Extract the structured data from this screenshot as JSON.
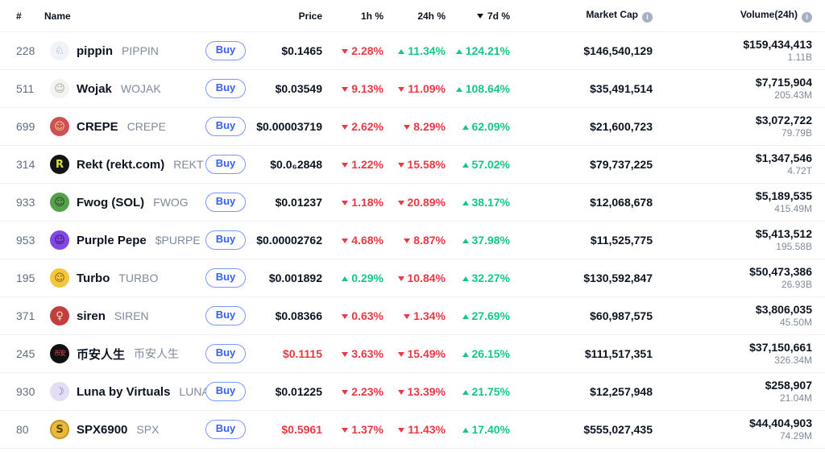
{
  "columns": {
    "rank": "#",
    "name": "Name",
    "price": "Price",
    "h1": "1h %",
    "h24": "24h %",
    "d7": "7d %",
    "market_cap": "Market Cap",
    "volume": "Volume(24h)"
  },
  "labels": {
    "buy": "Buy"
  },
  "sort": {
    "column": "7d %",
    "direction": "desc"
  },
  "colors": {
    "up": "#16c784",
    "down": "#ea3943",
    "buy_blue": "#3861fb",
    "text": "#0d1421",
    "secondary": "#808a9d"
  },
  "icons": {
    "market_cap_info": "info-icon",
    "volume_info": "info-icon",
    "sort_desc": "caret-down"
  },
  "rows": [
    {
      "rank": "228",
      "icon": {
        "glyph": "♘",
        "style": "background:#f0f4fa;color:#8d99ab"
      },
      "name": "pippin",
      "symbol": "PIPPIN",
      "price": {
        "value": "$0.1465",
        "cls": ""
      },
      "h1": {
        "value": "2.28%",
        "dir": "down"
      },
      "h24": {
        "value": "11.34%",
        "dir": "up"
      },
      "d7": {
        "value": "124.21%",
        "dir": "up"
      },
      "market_cap": "$146,540,129",
      "volume": "$159,434,413",
      "volume_sub": "1.11B"
    },
    {
      "rank": "511",
      "icon": {
        "glyph": "☺",
        "style": "background:#f3f3f1;color:#a8a89e"
      },
      "name": "Wojak",
      "symbol": "WOJAK",
      "price": {
        "value": "$0.03549",
        "cls": ""
      },
      "h1": {
        "value": "9.13%",
        "dir": "down"
      },
      "h24": {
        "value": "11.09%",
        "dir": "down"
      },
      "d7": {
        "value": "108.64%",
        "dir": "up"
      },
      "market_cap": "$35,491,514",
      "volume": "$7,715,904",
      "volume_sub": "205.43M"
    },
    {
      "rank": "699",
      "icon": {
        "glyph": "☺",
        "style": "background:#cf5058;color:#f6d77d"
      },
      "name": "CREPE",
      "symbol": "CREPE",
      "price": {
        "value": "$0.00003719",
        "cls": ""
      },
      "h1": {
        "value": "2.62%",
        "dir": "down"
      },
      "h24": {
        "value": "8.29%",
        "dir": "down"
      },
      "d7": {
        "value": "62.09%",
        "dir": "up"
      },
      "market_cap": "$21,600,723",
      "volume": "$3,072,722",
      "volume_sub": "79.79B"
    },
    {
      "rank": "314",
      "icon": {
        "glyph": "R",
        "style": "background:#141414;color:#d6e33e;font-weight:bold"
      },
      "name": "Rekt (rekt.com)",
      "symbol": "REKT",
      "price": {
        "value": "$0.0₆2848",
        "cls": ""
      },
      "h1": {
        "value": "1.22%",
        "dir": "down"
      },
      "h24": {
        "value": "15.58%",
        "dir": "down"
      },
      "d7": {
        "value": "57.02%",
        "dir": "up"
      },
      "market_cap": "$79,737,225",
      "volume": "$1,347,546",
      "volume_sub": "4.72T"
    },
    {
      "rank": "933",
      "icon": {
        "glyph": "☺",
        "style": "background:#56a04c;color:#1d3f1a"
      },
      "name": "Fwog (SOL)",
      "symbol": "FWOG",
      "price": {
        "value": "$0.01237",
        "cls": ""
      },
      "h1": {
        "value": "1.18%",
        "dir": "down"
      },
      "h24": {
        "value": "20.89%",
        "dir": "down"
      },
      "d7": {
        "value": "38.17%",
        "dir": "up"
      },
      "market_cap": "$12,068,678",
      "volume": "$5,189,535",
      "volume_sub": "415.49M"
    },
    {
      "rank": "953",
      "icon": {
        "glyph": "☺",
        "style": "background:#8247e5;color:#2a1457"
      },
      "name": "Purple Pepe",
      "symbol": "$PURPE",
      "price": {
        "value": "$0.00002762",
        "cls": ""
      },
      "h1": {
        "value": "4.68%",
        "dir": "down"
      },
      "h24": {
        "value": "8.87%",
        "dir": "down"
      },
      "d7": {
        "value": "37.98%",
        "dir": "up"
      },
      "market_cap": "$11,525,775",
      "volume": "$5,413,512",
      "volume_sub": "195.58B"
    },
    {
      "rank": "195",
      "icon": {
        "glyph": "☺",
        "style": "background:#f2c73d;color:#8a5a00"
      },
      "name": "Turbo",
      "symbol": "TURBO",
      "price": {
        "value": "$0.001892",
        "cls": ""
      },
      "h1": {
        "value": "0.29%",
        "dir": "up"
      },
      "h24": {
        "value": "10.84%",
        "dir": "down"
      },
      "d7": {
        "value": "32.27%",
        "dir": "up"
      },
      "market_cap": "$130,592,847",
      "volume": "$50,473,386",
      "volume_sub": "26.93B"
    },
    {
      "rank": "371",
      "icon": {
        "glyph": "♀",
        "style": "background:#c23f3f;color:#ffd9c9"
      },
      "name": "siren",
      "symbol": "SIREN",
      "price": {
        "value": "$0.08366",
        "cls": ""
      },
      "h1": {
        "value": "0.63%",
        "dir": "down"
      },
      "h24": {
        "value": "1.34%",
        "dir": "down"
      },
      "d7": {
        "value": "27.69%",
        "dir": "up"
      },
      "market_cap": "$60,987,575",
      "volume": "$3,806,035",
      "volume_sub": "45.50M"
    },
    {
      "rank": "245",
      "icon": {
        "glyph": "币安",
        "style": "background:#101010;color:#e5484d;font-size:8px;letter-spacing:-1px"
      },
      "name": "币安人生",
      "symbol": "币安人生",
      "price": {
        "value": "$0.1115",
        "cls": "neg"
      },
      "h1": {
        "value": "3.63%",
        "dir": "down"
      },
      "h24": {
        "value": "15.49%",
        "dir": "down"
      },
      "d7": {
        "value": "26.15%",
        "dir": "up"
      },
      "market_cap": "$111,517,351",
      "volume": "$37,150,661",
      "volume_sub": "326.34M"
    },
    {
      "rank": "930",
      "icon": {
        "glyph": "☽",
        "style": "background:#e3def5;color:#7b6cc9"
      },
      "name": "Luna by Virtuals",
      "symbol": "LUNA",
      "price": {
        "value": "$0.01225",
        "cls": ""
      },
      "h1": {
        "value": "2.23%",
        "dir": "down"
      },
      "h24": {
        "value": "13.39%",
        "dir": "down"
      },
      "d7": {
        "value": "21.75%",
        "dir": "up"
      },
      "market_cap": "$12,257,948",
      "volume": "$258,907",
      "volume_sub": "21.04M"
    },
    {
      "rank": "80",
      "icon": {
        "glyph": "S",
        "style": "background:#e9b93b;color:#5f4300;font-weight:bold;box-shadow:inset 0 0 0 2px #c9952b"
      },
      "name": "SPX6900",
      "symbol": "SPX",
      "price": {
        "value": "$0.5961",
        "cls": "neg"
      },
      "h1": {
        "value": "1.37%",
        "dir": "down"
      },
      "h24": {
        "value": "11.43%",
        "dir": "down"
      },
      "d7": {
        "value": "17.40%",
        "dir": "up"
      },
      "market_cap": "$555,027,435",
      "volume": "$44,404,903",
      "volume_sub": "74.29M"
    }
  ]
}
